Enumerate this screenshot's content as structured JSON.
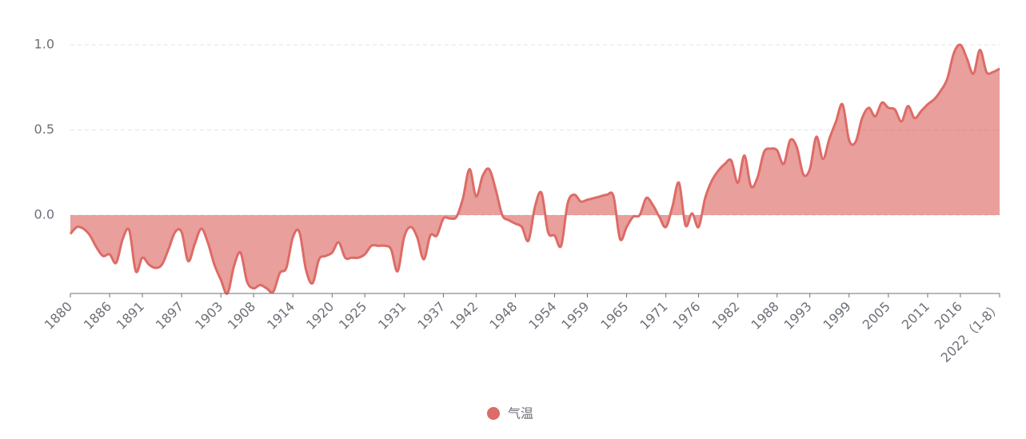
{
  "chart_data": {
    "type": "area",
    "categories": [
      "1880",
      null,
      null,
      null,
      null,
      null,
      "1886",
      null,
      null,
      null,
      null,
      "1891",
      null,
      null,
      null,
      null,
      null,
      "1897",
      null,
      null,
      null,
      null,
      null,
      "1903",
      null,
      null,
      null,
      null,
      "1908",
      null,
      null,
      null,
      null,
      null,
      "1914",
      null,
      null,
      null,
      null,
      null,
      "1920",
      null,
      null,
      null,
      null,
      "1925",
      null,
      null,
      null,
      null,
      null,
      "1931",
      null,
      null,
      null,
      null,
      null,
      "1937",
      null,
      null,
      null,
      null,
      "1942",
      null,
      null,
      null,
      null,
      null,
      "1948",
      null,
      null,
      null,
      null,
      null,
      "1954",
      null,
      null,
      null,
      null,
      "1959",
      null,
      null,
      null,
      null,
      null,
      "1965",
      null,
      null,
      null,
      null,
      null,
      "1971",
      null,
      null,
      null,
      null,
      "1976",
      null,
      null,
      null,
      null,
      null,
      "1982",
      null,
      null,
      null,
      null,
      null,
      "1988",
      null,
      null,
      null,
      null,
      "1993",
      null,
      null,
      null,
      null,
      null,
      "1999",
      null,
      null,
      null,
      null,
      null,
      "2005",
      null,
      null,
      null,
      null,
      null,
      "2011",
      null,
      null,
      null,
      null,
      "2016",
      null,
      null,
      null,
      null,
      null,
      "2022（1-8）"
    ],
    "series": [
      {
        "name": "气温",
        "color": "#dd6b66",
        "values": [
          -0.11,
          -0.07,
          -0.08,
          -0.12,
          -0.19,
          -0.24,
          -0.23,
          -0.28,
          -0.14,
          -0.09,
          -0.33,
          -0.25,
          -0.29,
          -0.31,
          -0.29,
          -0.2,
          -0.1,
          -0.1,
          -0.27,
          -0.17,
          -0.08,
          -0.16,
          -0.29,
          -0.38,
          -0.46,
          -0.3,
          -0.22,
          -0.39,
          -0.43,
          -0.41,
          -0.43,
          -0.45,
          -0.34,
          -0.31,
          -0.13,
          -0.1,
          -0.32,
          -0.4,
          -0.26,
          -0.24,
          -0.22,
          -0.16,
          -0.25,
          -0.25,
          -0.25,
          -0.23,
          -0.18,
          -0.18,
          -0.18,
          -0.2,
          -0.33,
          -0.13,
          -0.07,
          -0.13,
          -0.26,
          -0.12,
          -0.12,
          -0.02,
          -0.02,
          -0.01,
          0.1,
          0.27,
          0.11,
          0.23,
          0.27,
          0.15,
          0.0,
          -0.03,
          -0.05,
          -0.07,
          -0.15,
          0.05,
          0.13,
          -0.1,
          -0.12,
          -0.18,
          0.07,
          0.12,
          0.08,
          0.09,
          0.1,
          0.11,
          0.12,
          0.11,
          -0.14,
          -0.07,
          -0.01,
          0.0,
          0.1,
          0.06,
          -0.01,
          -0.07,
          0.05,
          0.19,
          -0.06,
          0.01,
          -0.07,
          0.1,
          0.2,
          0.26,
          0.3,
          0.32,
          0.19,
          0.35,
          0.17,
          0.22,
          0.37,
          0.39,
          0.38,
          0.3,
          0.44,
          0.4,
          0.24,
          0.27,
          0.46,
          0.33,
          0.45,
          0.55,
          0.65,
          0.44,
          0.43,
          0.57,
          0.63,
          0.58,
          0.66,
          0.63,
          0.62,
          0.55,
          0.64,
          0.57,
          0.61,
          0.65,
          0.68,
          0.73,
          0.8,
          0.95,
          1.0,
          0.92,
          0.83,
          0.97,
          0.84,
          0.84,
          0.86
        ]
      }
    ],
    "ylim": [
      -0.46,
      1.0
    ],
    "yticks": [
      {
        "value": 0,
        "label": "0.0"
      },
      0.5,
      {
        "value": 1.0,
        "label": "1.0"
      }
    ],
    "grid": true
  }
}
